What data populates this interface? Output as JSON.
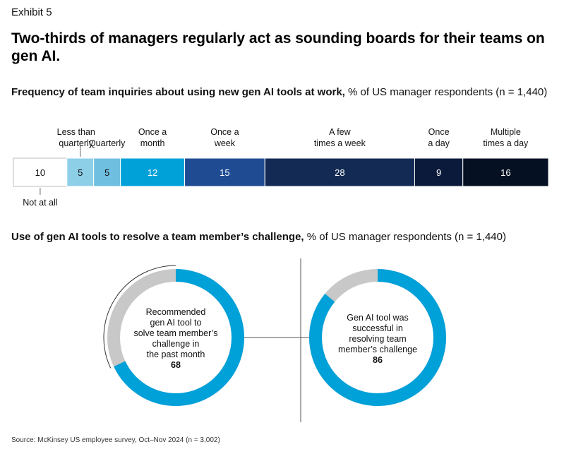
{
  "exhibit_label": "Exhibit 5",
  "title": "Two-thirds of managers regularly act as sounding boards for their teams on gen AI.",
  "section1": {
    "subtitle_bold": "Frequency of team inquiries about using new gen AI tools at work,",
    "subtitle_rest": " % of US manager respondents (n = 1,440)"
  },
  "section2": {
    "subtitle_bold": "Use of gen AI tools to resolve a team member’s challenge,",
    "subtitle_rest": " % of US manager respondents (n = 1,440)"
  },
  "source": "Source: McKinsey US employee survey, Oct–Nov 2024 (n = 3,002)",
  "chart_data": [
    {
      "type": "bar",
      "orientation": "stacked-horizontal",
      "title": "Frequency of team inquiries about using new gen AI tools at work",
      "units": "% of US manager respondents (n = 1,440)",
      "categories": [
        {
          "label_lines": [
            "Not at all"
          ],
          "value": 10,
          "label_position": "below",
          "color": "#ffffff",
          "text_color": "#111111"
        },
        {
          "label_lines": [
            "Less than",
            "quarterly"
          ],
          "value": 5,
          "label_position": "above",
          "color": "#8ecfe8",
          "text_color": "#111111"
        },
        {
          "label_lines": [
            "Quarterly"
          ],
          "value": 5,
          "label_position": "above",
          "color": "#6fbfe0",
          "text_color": "#111111"
        },
        {
          "label_lines": [
            "Once a",
            "month"
          ],
          "value": 12,
          "label_position": "above",
          "color": "#00a0d8",
          "text_color": "#ffffff"
        },
        {
          "label_lines": [
            "Once a",
            "week"
          ],
          "value": 15,
          "label_position": "above",
          "color": "#1f4b93",
          "text_color": "#ffffff"
        },
        {
          "label_lines": [
            "A few",
            "times a week"
          ],
          "value": 28,
          "label_position": "above",
          "color": "#132a54",
          "text_color": "#ffffff"
        },
        {
          "label_lines": [
            "Once",
            "a day"
          ],
          "value": 9,
          "label_position": "above",
          "color": "#0b1a3a",
          "text_color": "#ffffff"
        },
        {
          "label_lines": [
            "Multiple",
            "times a day"
          ],
          "value": 16,
          "label_position": "above",
          "color": "#051022",
          "text_color": "#ffffff"
        }
      ]
    },
    {
      "type": "pie",
      "variant": "donut",
      "title": "Recommended gen AI tool to solve team member’s challenge in the past month",
      "label_lines": [
        "Recommended",
        "gen AI tool to",
        "solve team member’s",
        "challenge in",
        "the past month"
      ],
      "value": 68,
      "colors": {
        "value": "#00a0d8",
        "remainder": "#c8c8c8"
      }
    },
    {
      "type": "pie",
      "variant": "donut",
      "title": "Gen AI tool was successful in resolving team member’s challenge",
      "label_lines": [
        "Gen AI tool was",
        "successful in",
        "resolving team",
        "member’s challenge"
      ],
      "value": 86,
      "colors": {
        "value": "#00a0d8",
        "remainder": "#c8c8c8"
      }
    }
  ]
}
